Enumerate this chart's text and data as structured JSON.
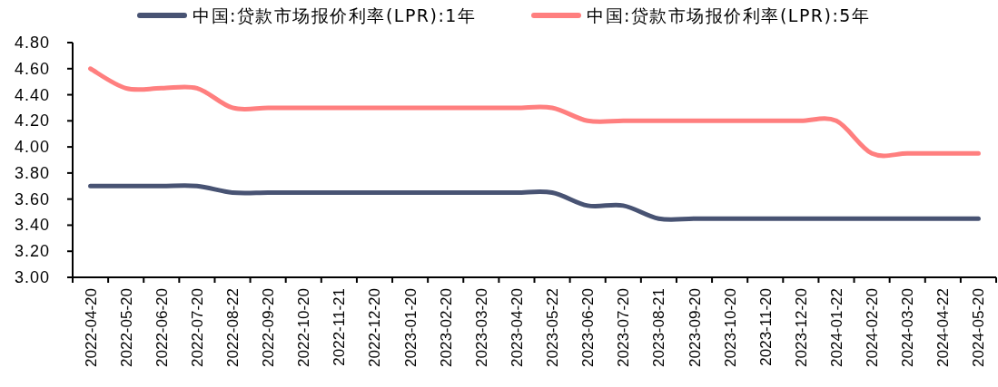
{
  "chart_data": {
    "type": "line",
    "categories": [
      "2022-04-20",
      "2022-05-20",
      "2022-06-20",
      "2022-07-20",
      "2022-08-22",
      "2022-09-20",
      "2022-10-20",
      "2022-11-21",
      "2022-12-20",
      "2023-01-20",
      "2023-02-20",
      "2023-03-20",
      "2023-04-20",
      "2023-05-22",
      "2023-06-20",
      "2023-07-20",
      "2023-08-21",
      "2023-09-20",
      "2023-10-20",
      "2023-11-20",
      "2023-12-20",
      "2024-01-22",
      "2024-02-20",
      "2024-03-20",
      "2024-04-22",
      "2024-05-20"
    ],
    "series": [
      {
        "name": "中国:贷款市场报价利率(LPR):1年",
        "color": "#485373",
        "values": [
          3.7,
          3.7,
          3.7,
          3.7,
          3.65,
          3.65,
          3.65,
          3.65,
          3.65,
          3.65,
          3.65,
          3.65,
          3.65,
          3.65,
          3.55,
          3.55,
          3.45,
          3.45,
          3.45,
          3.45,
          3.45,
          3.45,
          3.45,
          3.45,
          3.45,
          3.45
        ]
      },
      {
        "name": "中国:贷款市场报价利率(LPR):5年",
        "color": "#ff7f7f",
        "values": [
          4.6,
          4.45,
          4.45,
          4.45,
          4.3,
          4.3,
          4.3,
          4.3,
          4.3,
          4.3,
          4.3,
          4.3,
          4.3,
          4.3,
          4.2,
          4.2,
          4.2,
          4.2,
          4.2,
          4.2,
          4.2,
          4.2,
          3.95,
          3.95,
          3.95,
          3.95
        ]
      }
    ],
    "ylim": [
      3,
      4.8
    ],
    "yticks": [
      {
        "value": 3,
        "label": "3.00"
      },
      {
        "value": 3.2,
        "label": "3.20"
      },
      {
        "value": 3.4,
        "label": "3.40"
      },
      {
        "value": 3.6,
        "label": "3.60"
      },
      {
        "value": 3.8,
        "label": "3.80"
      },
      {
        "value": 4,
        "label": "4.00"
      },
      {
        "value": 4.2,
        "label": "4.20"
      },
      {
        "value": 4.4,
        "label": "4.40"
      },
      {
        "value": 4.6,
        "label": "4.60"
      },
      {
        "value": 4.8,
        "label": "4.80"
      }
    ],
    "legend": "top",
    "line_style": "solid"
  }
}
